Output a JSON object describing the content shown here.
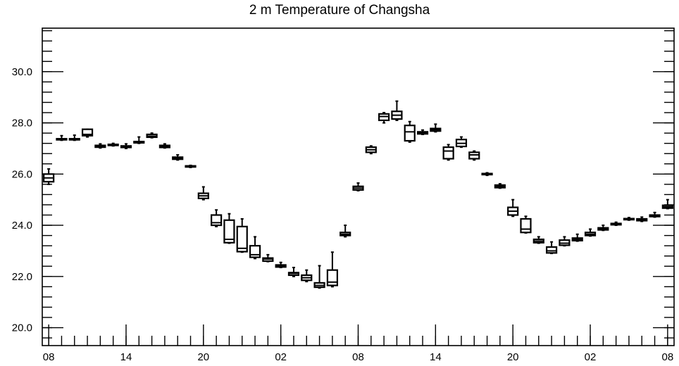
{
  "chart_data": {
    "type": "boxplot",
    "title": "2 m Temperature of Changsha",
    "xlabel": "",
    "ylabel": "",
    "ylim": [
      19.3,
      31.7
    ],
    "xlim": [
      -0.5,
      48.5
    ],
    "y_ticks": [
      20.0,
      22.0,
      24.0,
      26.0,
      28.0,
      30.0
    ],
    "y_tick_labels": [
      "20.0",
      "22.0",
      "24.0",
      "26.0",
      "28.0",
      "30.0"
    ],
    "x_tick_positions": [
      0,
      6,
      12,
      18,
      24,
      30,
      36,
      42,
      48
    ],
    "x_tick_labels": [
      "08",
      "14",
      "20",
      "02",
      "08",
      "14",
      "20",
      "02",
      "08"
    ],
    "grid": false,
    "series": [
      {
        "boxes": [
          {
            "x": 0,
            "low": 25.6,
            "q1": 25.7,
            "median": 25.85,
            "q3": 26.0,
            "high": 26.2
          },
          {
            "x": 1,
            "low": 27.32,
            "q1": 27.34,
            "median": 27.36,
            "q3": 27.38,
            "high": 27.5
          },
          {
            "x": 2,
            "low": 27.32,
            "q1": 27.34,
            "median": 27.36,
            "q3": 27.38,
            "high": 27.52
          },
          {
            "x": 3,
            "low": 27.45,
            "q1": 27.5,
            "median": 27.55,
            "q3": 27.75,
            "high": 27.75
          },
          {
            "x": 4,
            "low": 27.02,
            "q1": 27.05,
            "median": 27.08,
            "q3": 27.12,
            "high": 27.18
          },
          {
            "x": 5,
            "low": 27.1,
            "q1": 27.12,
            "median": 27.14,
            "q3": 27.16,
            "high": 27.2
          },
          {
            "x": 6,
            "low": 27.0,
            "q1": 27.04,
            "median": 27.08,
            "q3": 27.1,
            "high": 27.18
          },
          {
            "x": 7,
            "low": 27.2,
            "q1": 27.22,
            "median": 27.25,
            "q3": 27.27,
            "high": 27.45
          },
          {
            "x": 8,
            "low": 27.42,
            "q1": 27.44,
            "median": 27.48,
            "q3": 27.55,
            "high": 27.6
          },
          {
            "x": 9,
            "low": 27.02,
            "q1": 27.04,
            "median": 27.08,
            "q3": 27.12,
            "high": 27.18
          },
          {
            "x": 10,
            "low": 26.55,
            "q1": 26.58,
            "median": 26.62,
            "q3": 26.66,
            "high": 26.75
          },
          {
            "x": 11,
            "low": 26.26,
            "q1": 26.28,
            "median": 26.3,
            "q3": 26.32,
            "high": 26.34
          },
          {
            "x": 12,
            "low": 25.0,
            "q1": 25.05,
            "median": 25.15,
            "q3": 25.25,
            "high": 25.5
          },
          {
            "x": 13,
            "low": 23.95,
            "q1": 24.0,
            "median": 24.1,
            "q3": 24.4,
            "high": 24.6
          },
          {
            "x": 14,
            "low": 23.3,
            "q1": 23.32,
            "median": 23.45,
            "q3": 24.2,
            "high": 24.45
          },
          {
            "x": 15,
            "low": 22.95,
            "q1": 22.97,
            "median": 23.1,
            "q3": 23.95,
            "high": 24.25
          },
          {
            "x": 16,
            "low": 22.7,
            "q1": 22.75,
            "median": 22.85,
            "q3": 23.2,
            "high": 23.55
          },
          {
            "x": 17,
            "low": 22.58,
            "q1": 22.6,
            "median": 22.68,
            "q3": 22.72,
            "high": 22.85
          },
          {
            "x": 18,
            "low": 22.35,
            "q1": 22.37,
            "median": 22.42,
            "q3": 22.45,
            "high": 22.55
          },
          {
            "x": 19,
            "low": 22.0,
            "q1": 22.05,
            "median": 22.12,
            "q3": 22.15,
            "high": 22.35
          },
          {
            "x": 20,
            "low": 21.8,
            "q1": 21.85,
            "median": 21.95,
            "q3": 22.05,
            "high": 22.25
          },
          {
            "x": 21,
            "low": 21.55,
            "q1": 21.58,
            "median": 21.65,
            "q3": 21.75,
            "high": 22.42
          },
          {
            "x": 22,
            "low": 21.6,
            "q1": 21.65,
            "median": 21.78,
            "q3": 22.25,
            "high": 22.95
          },
          {
            "x": 23,
            "low": 23.55,
            "q1": 23.6,
            "median": 23.65,
            "q3": 23.72,
            "high": 24.0
          },
          {
            "x": 24,
            "low": 25.35,
            "q1": 25.38,
            "median": 25.45,
            "q3": 25.52,
            "high": 25.65
          },
          {
            "x": 25,
            "low": 26.8,
            "q1": 26.85,
            "median": 26.95,
            "q3": 27.05,
            "high": 27.1
          },
          {
            "x": 26,
            "low": 28.0,
            "q1": 28.1,
            "median": 28.25,
            "q3": 28.35,
            "high": 28.4
          },
          {
            "x": 27,
            "low": 28.1,
            "q1": 28.15,
            "median": 28.3,
            "q3": 28.45,
            "high": 28.85
          },
          {
            "x": 28,
            "low": 27.25,
            "q1": 27.3,
            "median": 27.65,
            "q3": 27.9,
            "high": 28.05
          },
          {
            "x": 29,
            "low": 27.55,
            "q1": 27.57,
            "median": 27.62,
            "q3": 27.65,
            "high": 27.72
          },
          {
            "x": 30,
            "low": 27.65,
            "q1": 27.68,
            "median": 27.73,
            "q3": 27.78,
            "high": 27.95
          },
          {
            "x": 31,
            "low": 26.55,
            "q1": 26.6,
            "median": 26.9,
            "q3": 27.05,
            "high": 27.15
          },
          {
            "x": 32,
            "low": 27.05,
            "q1": 27.08,
            "median": 27.2,
            "q3": 27.35,
            "high": 27.45
          },
          {
            "x": 33,
            "low": 26.55,
            "q1": 26.6,
            "median": 26.75,
            "q3": 26.85,
            "high": 26.9
          },
          {
            "x": 34,
            "low": 25.95,
            "q1": 25.98,
            "median": 26.0,
            "q3": 26.02,
            "high": 26.05
          },
          {
            "x": 35,
            "low": 25.45,
            "q1": 25.47,
            "median": 25.52,
            "q3": 25.57,
            "high": 25.62
          },
          {
            "x": 36,
            "low": 24.35,
            "q1": 24.4,
            "median": 24.55,
            "q3": 24.7,
            "high": 25.0
          },
          {
            "x": 37,
            "low": 23.7,
            "q1": 23.72,
            "median": 23.85,
            "q3": 24.25,
            "high": 24.35
          },
          {
            "x": 38,
            "low": 23.3,
            "q1": 23.32,
            "median": 23.38,
            "q3": 23.45,
            "high": 23.55
          },
          {
            "x": 39,
            "low": 22.9,
            "q1": 22.92,
            "median": 23.0,
            "q3": 23.15,
            "high": 23.35
          },
          {
            "x": 40,
            "low": 23.2,
            "q1": 23.22,
            "median": 23.3,
            "q3": 23.42,
            "high": 23.55
          },
          {
            "x": 41,
            "low": 23.38,
            "q1": 23.4,
            "median": 23.45,
            "q3": 23.5,
            "high": 23.65
          },
          {
            "x": 42,
            "low": 23.58,
            "q1": 23.6,
            "median": 23.65,
            "q3": 23.72,
            "high": 23.85
          },
          {
            "x": 43,
            "low": 23.8,
            "q1": 23.82,
            "median": 23.86,
            "q3": 23.9,
            "high": 24.0
          },
          {
            "x": 44,
            "low": 24.0,
            "q1": 24.02,
            "median": 24.04,
            "q3": 24.07,
            "high": 24.12
          },
          {
            "x": 45,
            "low": 24.2,
            "q1": 24.22,
            "median": 24.24,
            "q3": 24.26,
            "high": 24.3
          },
          {
            "x": 46,
            "low": 24.15,
            "q1": 24.18,
            "median": 24.22,
            "q3": 24.25,
            "high": 24.32
          },
          {
            "x": 47,
            "low": 24.32,
            "q1": 24.34,
            "median": 24.37,
            "q3": 24.4,
            "high": 24.5
          },
          {
            "x": 48,
            "low": 24.65,
            "q1": 24.67,
            "median": 24.72,
            "q3": 24.78,
            "high": 25.0
          }
        ]
      }
    ]
  }
}
